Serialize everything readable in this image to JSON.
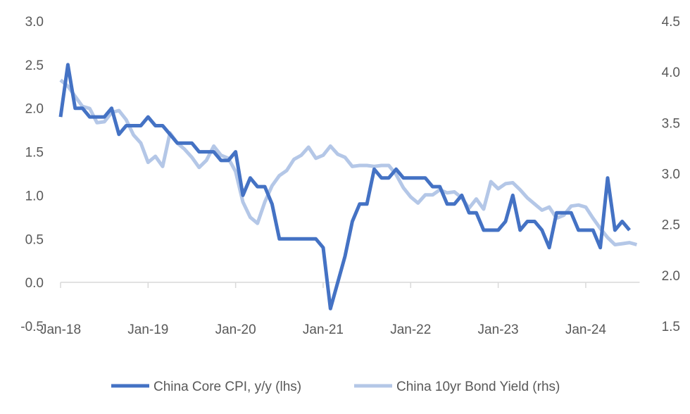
{
  "chart_data": {
    "type": "line",
    "title": "",
    "xlabel": "",
    "ylabel": "",
    "y_left_lim": [
      -0.5,
      3.0
    ],
    "y_right_lim": [
      1.5,
      4.5
    ],
    "y_left_ticks": [
      "-0.5",
      "0.0",
      "0.5",
      "1.0",
      "1.5",
      "2.0",
      "2.5",
      "3.0"
    ],
    "y_right_ticks": [
      "1.5",
      "2.0",
      "2.5",
      "3.0",
      "3.5",
      "4.0",
      "4.5"
    ],
    "x_ticks": [
      "Jan-18",
      "Jan-19",
      "Jan-20",
      "Jan-21",
      "Jan-22",
      "Jan-23",
      "Jan-24"
    ],
    "x_start": "Jan-18",
    "grid": false,
    "legend": "bottom",
    "series": [
      {
        "name": "China Core CPI, y/y (lhs)",
        "axis": "left",
        "color": "#4472C4",
        "values": [
          1.9,
          2.5,
          2.0,
          2.0,
          1.9,
          1.9,
          1.9,
          2.0,
          1.7,
          1.8,
          1.8,
          1.8,
          1.9,
          1.8,
          1.8,
          1.7,
          1.6,
          1.6,
          1.6,
          1.5,
          1.5,
          1.5,
          1.4,
          1.4,
          1.5,
          1.0,
          1.2,
          1.1,
          1.1,
          0.9,
          0.5,
          0.5,
          0.5,
          0.5,
          0.5,
          0.5,
          0.4,
          -0.3,
          0.0,
          0.3,
          0.7,
          0.9,
          0.9,
          1.3,
          1.2,
          1.2,
          1.3,
          1.2,
          1.2,
          1.2,
          1.2,
          1.1,
          1.1,
          0.9,
          0.9,
          1.0,
          0.8,
          0.8,
          0.6,
          0.6,
          0.6,
          0.7,
          1.0,
          0.6,
          0.7,
          0.7,
          0.6,
          0.4,
          0.8,
          0.8,
          0.8,
          0.6,
          0.6,
          0.6,
          0.4,
          1.2,
          0.6,
          0.7,
          0.6
        ]
      },
      {
        "name": "China 10yr Bond Yield (rhs)",
        "axis": "right",
        "color": "#B4C7E7",
        "values": [
          3.92,
          3.86,
          3.76,
          3.66,
          3.64,
          3.5,
          3.51,
          3.6,
          3.62,
          3.53,
          3.38,
          3.3,
          3.11,
          3.17,
          3.07,
          3.4,
          3.3,
          3.24,
          3.16,
          3.06,
          3.13,
          3.27,
          3.18,
          3.15,
          3.02,
          2.72,
          2.57,
          2.51,
          2.72,
          2.88,
          2.98,
          3.03,
          3.14,
          3.18,
          3.26,
          3.15,
          3.18,
          3.27,
          3.19,
          3.16,
          3.07,
          3.08,
          3.08,
          3.07,
          3.08,
          3.08,
          2.99,
          2.86,
          2.77,
          2.71,
          2.79,
          2.79,
          2.84,
          2.81,
          2.82,
          2.76,
          2.66,
          2.75,
          2.65,
          2.92,
          2.85,
          2.9,
          2.91,
          2.84,
          2.76,
          2.7,
          2.64,
          2.67,
          2.56,
          2.59,
          2.68,
          2.69,
          2.67,
          2.56,
          2.46,
          2.37,
          2.3,
          2.31,
          2.32,
          2.3
        ]
      }
    ]
  }
}
